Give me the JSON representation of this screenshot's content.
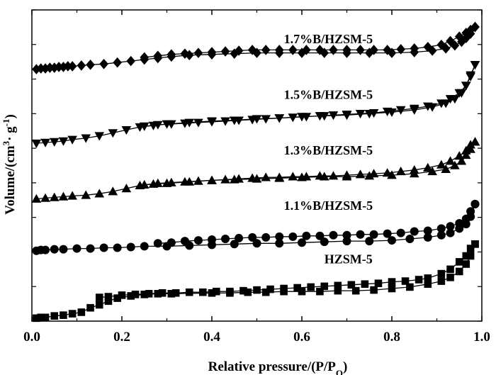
{
  "chart_data": {
    "type": "line",
    "xlabel": "Relative pressure/(P/P",
    "xlabel_sub": "O",
    "xlabel_end": ")",
    "ylabel": "Volume/(cm",
    "ylabel_sup": "3",
    "ylabel_mid": "· g",
    "ylabel_sup2": "-1",
    "ylabel_end": ")",
    "xlim": [
      0,
      1.0
    ],
    "ylim": [
      0,
      420
    ],
    "x_ticks": [
      0.0,
      0.2,
      0.4,
      0.6,
      0.8,
      1.0
    ],
    "x_tick_labels": [
      "0.0",
      "0.2",
      "0.4",
      "0.6",
      "0.8",
      "1.0"
    ],
    "y_tick_count": 9,
    "grid": false,
    "series": [
      {
        "name": "HZSM-5",
        "marker": "square",
        "label": "HZSM-5",
        "label_pos": [
          0.65,
          78
        ],
        "adsorption": [
          [
            0.01,
            4
          ],
          [
            0.02,
            5
          ],
          [
            0.03,
            5
          ],
          [
            0.05,
            7
          ],
          [
            0.07,
            8
          ],
          [
            0.09,
            10
          ],
          [
            0.11,
            12
          ],
          [
            0.13,
            18
          ],
          [
            0.15,
            22
          ],
          [
            0.17,
            27
          ],
          [
            0.19,
            31
          ],
          [
            0.22,
            34
          ],
          [
            0.25,
            36
          ],
          [
            0.28,
            37
          ],
          [
            0.31,
            37
          ],
          [
            0.4,
            38
          ],
          [
            0.44,
            38
          ],
          [
            0.48,
            39
          ],
          [
            0.52,
            39
          ],
          [
            0.56,
            40
          ],
          [
            0.6,
            40
          ],
          [
            0.64,
            40
          ],
          [
            0.68,
            41
          ],
          [
            0.72,
            41
          ],
          [
            0.76,
            42
          ],
          [
            0.8,
            44
          ],
          [
            0.84,
            46
          ],
          [
            0.88,
            50
          ],
          [
            0.91,
            54
          ],
          [
            0.93,
            59
          ],
          [
            0.95,
            67
          ],
          [
            0.965,
            77
          ],
          [
            0.975,
            88
          ],
          [
            0.985,
            104
          ]
        ],
        "desorption": [
          [
            0.985,
            104
          ],
          [
            0.975,
            98
          ],
          [
            0.965,
            88
          ],
          [
            0.95,
            80
          ],
          [
            0.93,
            70
          ],
          [
            0.91,
            64
          ],
          [
            0.88,
            58
          ],
          [
            0.86,
            56
          ],
          [
            0.83,
            54
          ],
          [
            0.8,
            53
          ],
          [
            0.77,
            51
          ],
          [
            0.74,
            50
          ],
          [
            0.71,
            49
          ],
          [
            0.68,
            48
          ],
          [
            0.65,
            47
          ],
          [
            0.62,
            46
          ],
          [
            0.59,
            45
          ],
          [
            0.56,
            44
          ],
          [
            0.53,
            43
          ],
          [
            0.5,
            42
          ],
          [
            0.47,
            41
          ],
          [
            0.44,
            40
          ],
          [
            0.41,
            40
          ],
          [
            0.38,
            39
          ],
          [
            0.35,
            39
          ],
          [
            0.32,
            38
          ],
          [
            0.29,
            38
          ],
          [
            0.26,
            37
          ],
          [
            0.23,
            36
          ],
          [
            0.2,
            35
          ],
          [
            0.17,
            33
          ],
          [
            0.15,
            32
          ]
        ]
      },
      {
        "name": "1.1%B/HZSM-5",
        "marker": "circle",
        "label": "1.1%B/HZSM-5",
        "label_pos": [
          0.56,
          150
        ],
        "adsorption": [
          [
            0.01,
            95
          ],
          [
            0.02,
            96
          ],
          [
            0.03,
            96
          ],
          [
            0.05,
            97
          ],
          [
            0.07,
            97
          ],
          [
            0.1,
            98
          ],
          [
            0.13,
            98
          ],
          [
            0.16,
            99
          ],
          [
            0.19,
            99
          ],
          [
            0.22,
            100
          ],
          [
            0.25,
            101
          ],
          [
            0.3,
            101
          ],
          [
            0.35,
            102
          ],
          [
            0.4,
            103
          ],
          [
            0.45,
            104
          ],
          [
            0.5,
            105
          ],
          [
            0.55,
            105
          ],
          [
            0.6,
            106
          ],
          [
            0.65,
            107
          ],
          [
            0.7,
            108
          ],
          [
            0.75,
            108
          ],
          [
            0.8,
            109
          ],
          [
            0.84,
            111
          ],
          [
            0.88,
            113
          ],
          [
            0.91,
            116
          ],
          [
            0.93,
            119
          ],
          [
            0.95,
            125
          ],
          [
            0.965,
            131
          ],
          [
            0.975,
            141
          ],
          [
            0.985,
            158
          ]
        ],
        "desorption": [
          [
            0.985,
            158
          ],
          [
            0.975,
            148
          ],
          [
            0.965,
            138
          ],
          [
            0.95,
            132
          ],
          [
            0.93,
            128
          ],
          [
            0.91,
            125
          ],
          [
            0.88,
            122
          ],
          [
            0.85,
            121
          ],
          [
            0.82,
            119
          ],
          [
            0.79,
            118
          ],
          [
            0.76,
            117
          ],
          [
            0.73,
            117
          ],
          [
            0.7,
            116
          ],
          [
            0.67,
            116
          ],
          [
            0.64,
            115
          ],
          [
            0.61,
            115
          ],
          [
            0.58,
            114
          ],
          [
            0.55,
            114
          ],
          [
            0.52,
            113
          ],
          [
            0.49,
            113
          ],
          [
            0.46,
            112
          ],
          [
            0.43,
            111
          ],
          [
            0.4,
            110
          ],
          [
            0.37,
            109
          ],
          [
            0.34,
            108
          ],
          [
            0.31,
            106
          ],
          [
            0.28,
            105
          ]
        ]
      },
      {
        "name": "1.3%B/HZSM-5",
        "marker": "triangle-up",
        "label": "1.3%B/HZSM-5",
        "label_pos": [
          0.56,
          225
        ],
        "adsorption": [
          [
            0.01,
            165
          ],
          [
            0.03,
            166
          ],
          [
            0.05,
            167
          ],
          [
            0.07,
            168
          ],
          [
            0.09,
            169
          ],
          [
            0.12,
            170
          ],
          [
            0.15,
            172
          ],
          [
            0.18,
            175
          ],
          [
            0.21,
            179
          ],
          [
            0.24,
            183
          ],
          [
            0.27,
            185
          ],
          [
            0.3,
            186
          ],
          [
            0.35,
            188
          ],
          [
            0.4,
            190
          ],
          [
            0.45,
            191
          ],
          [
            0.5,
            192
          ],
          [
            0.55,
            193
          ],
          [
            0.6,
            194
          ],
          [
            0.65,
            195
          ],
          [
            0.7,
            195
          ],
          [
            0.75,
            196
          ],
          [
            0.8,
            197
          ],
          [
            0.85,
            199
          ],
          [
            0.89,
            202
          ],
          [
            0.92,
            205
          ],
          [
            0.94,
            210
          ],
          [
            0.955,
            216
          ],
          [
            0.965,
            224
          ],
          [
            0.975,
            232
          ],
          [
            0.985,
            242
          ]
        ],
        "desorption": [
          [
            0.985,
            242
          ],
          [
            0.975,
            238
          ],
          [
            0.965,
            230
          ],
          [
            0.95,
            223
          ],
          [
            0.93,
            216
          ],
          [
            0.91,
            211
          ],
          [
            0.88,
            207
          ],
          [
            0.85,
            204
          ],
          [
            0.82,
            202
          ],
          [
            0.79,
            200
          ],
          [
            0.76,
            199
          ],
          [
            0.73,
            198
          ],
          [
            0.7,
            197
          ],
          [
            0.67,
            196
          ],
          [
            0.64,
            196
          ],
          [
            0.61,
            195
          ],
          [
            0.58,
            195
          ],
          [
            0.55,
            194
          ],
          [
            0.52,
            194
          ],
          [
            0.49,
            193
          ],
          [
            0.46,
            192
          ],
          [
            0.43,
            191
          ],
          [
            0.4,
            190
          ],
          [
            0.37,
            189
          ],
          [
            0.34,
            188
          ],
          [
            0.31,
            187
          ],
          [
            0.28,
            186
          ],
          [
            0.25,
            184
          ]
        ]
      },
      {
        "name": "1.5%B/HZSM-5",
        "marker": "triangle-down",
        "label": "1.5%B/HZSM-5",
        "label_pos": [
          0.56,
          300
        ],
        "adsorption": [
          [
            0.01,
            240
          ],
          [
            0.03,
            241
          ],
          [
            0.05,
            242
          ],
          [
            0.07,
            243
          ],
          [
            0.09,
            245
          ],
          [
            0.12,
            247
          ],
          [
            0.15,
            250
          ],
          [
            0.18,
            254
          ],
          [
            0.21,
            258
          ],
          [
            0.24,
            262
          ],
          [
            0.27,
            264
          ],
          [
            0.3,
            266
          ],
          [
            0.35,
            268
          ],
          [
            0.4,
            270
          ],
          [
            0.45,
            271
          ],
          [
            0.5,
            273
          ],
          [
            0.55,
            274
          ],
          [
            0.6,
            276
          ],
          [
            0.65,
            277
          ],
          [
            0.7,
            278
          ],
          [
            0.75,
            280
          ],
          [
            0.8,
            282
          ],
          [
            0.85,
            285
          ],
          [
            0.89,
            289
          ],
          [
            0.92,
            294
          ],
          [
            0.94,
            300
          ],
          [
            0.955,
            308
          ],
          [
            0.965,
            318
          ],
          [
            0.975,
            332
          ],
          [
            0.985,
            346
          ]
        ],
        "desorption": [
          [
            0.985,
            346
          ],
          [
            0.975,
            330
          ],
          [
            0.965,
            318
          ],
          [
            0.95,
            308
          ],
          [
            0.93,
            300
          ],
          [
            0.91,
            294
          ],
          [
            0.88,
            290
          ],
          [
            0.85,
            287
          ],
          [
            0.82,
            285
          ],
          [
            0.79,
            283
          ],
          [
            0.76,
            281
          ],
          [
            0.73,
            280
          ],
          [
            0.7,
            279
          ],
          [
            0.67,
            278
          ],
          [
            0.64,
            277
          ],
          [
            0.61,
            276
          ],
          [
            0.58,
            275
          ],
          [
            0.55,
            274
          ],
          [
            0.52,
            273
          ],
          [
            0.49,
            272
          ],
          [
            0.46,
            271
          ],
          [
            0.43,
            270
          ],
          [
            0.4,
            269
          ],
          [
            0.37,
            268
          ],
          [
            0.34,
            267
          ],
          [
            0.31,
            266
          ],
          [
            0.28,
            265
          ],
          [
            0.25,
            263
          ]
        ]
      },
      {
        "name": "1.7%B/HZSM-5",
        "marker": "diamond",
        "label": "1.7%B/HZSM-5",
        "label_pos": [
          0.56,
          375
        ],
        "adsorption": [
          [
            0.01,
            340
          ],
          [
            0.02,
            341
          ],
          [
            0.03,
            341
          ],
          [
            0.04,
            342
          ],
          [
            0.05,
            342
          ],
          [
            0.06,
            343
          ],
          [
            0.07,
            343
          ],
          [
            0.08,
            344
          ],
          [
            0.09,
            344
          ],
          [
            0.11,
            345
          ],
          [
            0.13,
            346
          ],
          [
            0.16,
            347
          ],
          [
            0.19,
            349
          ],
          [
            0.22,
            351
          ],
          [
            0.25,
            353
          ],
          [
            0.28,
            355
          ],
          [
            0.31,
            357
          ],
          [
            0.35,
            359
          ],
          [
            0.4,
            360
          ],
          [
            0.45,
            361
          ],
          [
            0.5,
            362
          ],
          [
            0.55,
            362
          ],
          [
            0.6,
            362
          ],
          [
            0.65,
            362
          ],
          [
            0.7,
            362
          ],
          [
            0.75,
            362
          ],
          [
            0.8,
            362
          ],
          [
            0.85,
            363
          ],
          [
            0.89,
            365
          ],
          [
            0.92,
            368
          ],
          [
            0.94,
            372
          ],
          [
            0.955,
            377
          ],
          [
            0.965,
            382
          ],
          [
            0.975,
            388
          ],
          [
            0.985,
            397
          ]
        ],
        "desorption": [
          [
            0.985,
            397
          ],
          [
            0.975,
            393
          ],
          [
            0.965,
            389
          ],
          [
            0.95,
            384
          ],
          [
            0.93,
            378
          ],
          [
            0.91,
            373
          ],
          [
            0.88,
            370
          ],
          [
            0.85,
            368
          ],
          [
            0.82,
            367
          ],
          [
            0.79,
            366
          ],
          [
            0.76,
            366
          ],
          [
            0.73,
            366
          ],
          [
            0.7,
            366
          ],
          [
            0.67,
            366
          ],
          [
            0.64,
            366
          ],
          [
            0.61,
            366
          ],
          [
            0.58,
            366
          ],
          [
            0.55,
            366
          ],
          [
            0.52,
            366
          ],
          [
            0.49,
            366
          ],
          [
            0.46,
            365
          ],
          [
            0.43,
            364
          ],
          [
            0.4,
            363
          ],
          [
            0.37,
            362
          ],
          [
            0.34,
            361
          ],
          [
            0.31,
            360
          ],
          [
            0.28,
            358
          ],
          [
            0.25,
            356
          ]
        ]
      }
    ]
  }
}
